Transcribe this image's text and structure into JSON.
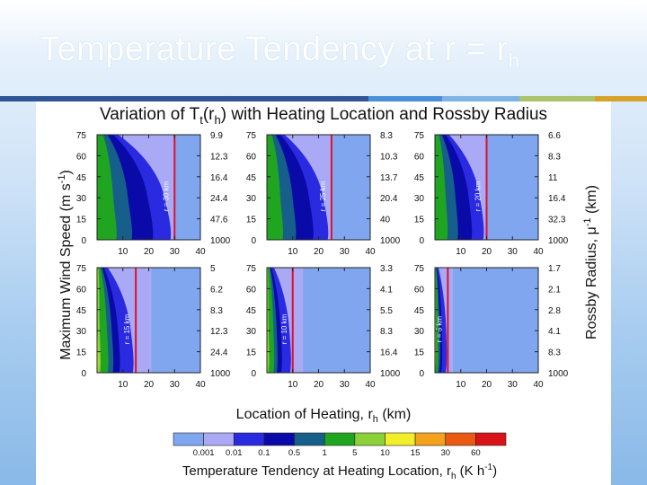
{
  "slide": {
    "title_main": "Temperature Tendency at r = r",
    "title_sub": "h"
  },
  "accent_colors": [
    "#2f5597",
    "#4a90d9",
    "#7fb3e6",
    "#a9c46a",
    "#d8a12a"
  ],
  "chart_data": {
    "type": "heatmap",
    "title_main": "Variation of T",
    "title_sub": "t",
    "title_rest": "(r",
    "title_sub2": "h",
    "title_end": ") with Heating Location and Rossby Radius",
    "ylabel_left": "Maximum Wind Speed (m s",
    "ylabel_left_sup": "-1",
    "ylabel_left_end": ")",
    "ylabel_right": "Rossby Radius, μ",
    "ylabel_right_sup": "-1",
    "ylabel_right_end": " (km)",
    "xlabel": "Location of Heating, r",
    "xlabel_sub": "h",
    "xlabel_end": " (km)",
    "xlim": [
      0,
      40
    ],
    "ylim": [
      0,
      75
    ],
    "xticks": [
      "10",
      "20",
      "30",
      "40"
    ],
    "yticks": [
      "75",
      "60",
      "45",
      "30",
      "15",
      "0"
    ],
    "panels": [
      {
        "rc_label": "r = 30 km",
        "rc": 30,
        "right_ticks": [
          "9.9",
          "12.3",
          "16.4",
          "24.4",
          "47.6",
          "1000"
        ]
      },
      {
        "rc_label": "r = 25 km",
        "rc": 25,
        "right_ticks": [
          "8.3",
          "10.3",
          "13.7",
          "20.4",
          "40",
          "1000"
        ]
      },
      {
        "rc_label": "r = 20 km",
        "rc": 20,
        "right_ticks": [
          "6.6",
          "8.3",
          "11",
          "16.4",
          "32.3",
          "1000"
        ]
      },
      {
        "rc_label": "r = 15 km",
        "rc": 15,
        "right_ticks": [
          "5",
          "6.2",
          "8.3",
          "12.3",
          "24.4",
          "1000"
        ]
      },
      {
        "rc_label": "r = 10 km",
        "rc": 10,
        "right_ticks": [
          "3.3",
          "4.1",
          "5.5",
          "8.3",
          "16.4",
          "1000"
        ]
      },
      {
        "rc_label": "r = 5 km",
        "rc": 5,
        "right_ticks": [
          "1.7",
          "2.1",
          "2.8",
          "4.1",
          "8.3",
          "1000"
        ]
      }
    ],
    "colorbar": {
      "label": "Temperature Tendency at Heating Location, r",
      "label_sub": "h",
      "label_units": " (K h",
      "label_units_sup": "-1",
      "label_end": ")",
      "levels": [
        "0.001",
        "0.01",
        "0.1",
        "0.5",
        "1",
        "5",
        "10",
        "15",
        "30",
        "60"
      ],
      "colors": [
        "#7fa6ef",
        "#a9a9f5",
        "#2a2ae0",
        "#0a0aa8",
        "#155f8a",
        "#1fa51f",
        "#8ad13a",
        "#f2ee2a",
        "#f4a21b",
        "#ea5a12",
        "#d8141a"
      ]
    }
  }
}
